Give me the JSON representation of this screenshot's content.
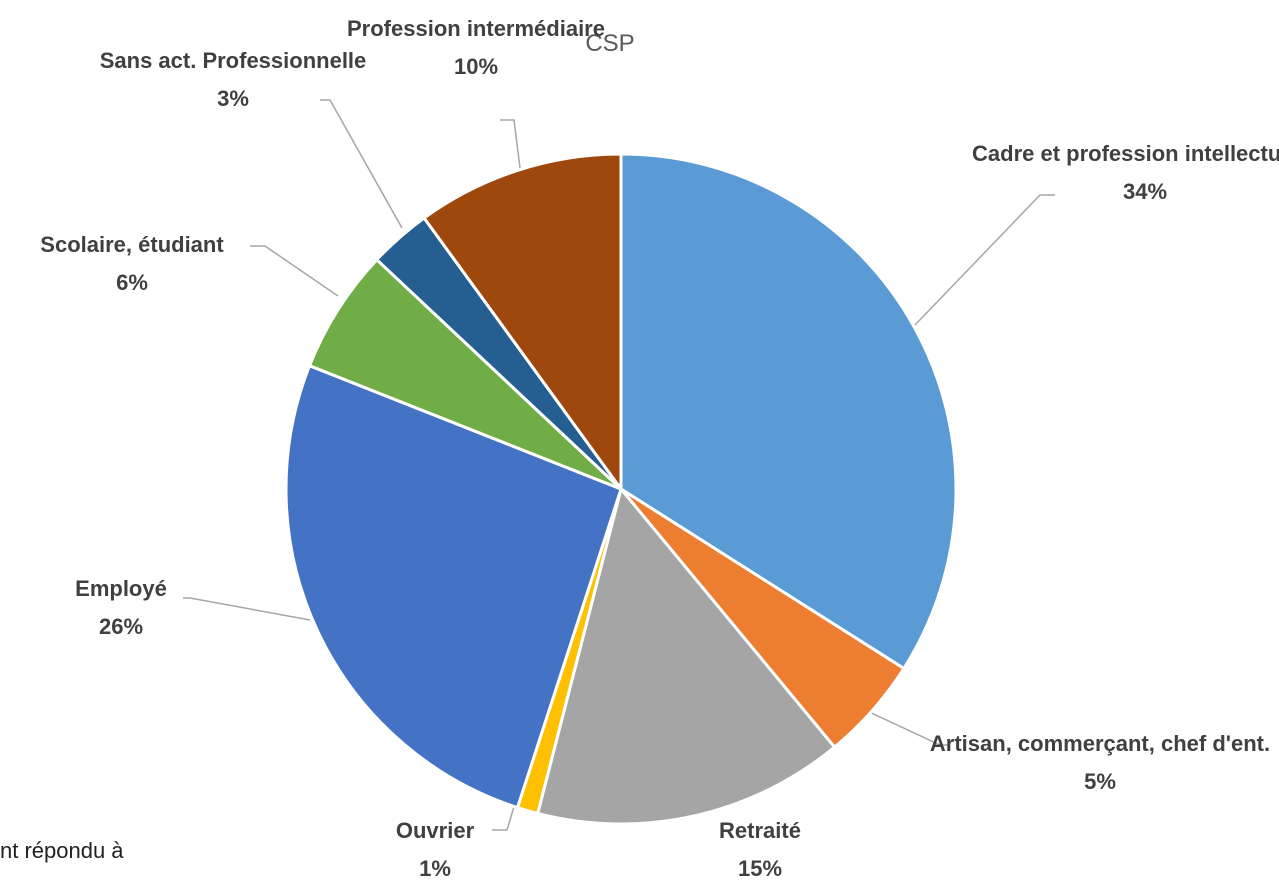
{
  "chart_data": {
    "type": "pie",
    "title": "CSP",
    "categories": [
      "Cadre et profession\nintellectuelle",
      "Artisan, commerçant,\nchef d'ent.",
      "Retraité",
      "Ouvrier",
      "Employé",
      "Scolaire, étudiant",
      "Sans act.\nProfessionnelle",
      "Profession\nintermédiaire"
    ],
    "values": [
      34,
      5,
      15,
      1,
      26,
      6,
      3,
      10
    ],
    "value_labels": [
      "34%",
      "5%",
      "15%",
      "1%",
      "26%",
      "6%",
      "3%",
      "10%"
    ],
    "colors": [
      "#5b9bd5",
      "#ed7d31",
      "#a5a5a5",
      "#ffc000",
      "#4472c4",
      "#70ad47",
      "#255e91",
      "#9e480e"
    ]
  },
  "background_text": "nt répondu à"
}
